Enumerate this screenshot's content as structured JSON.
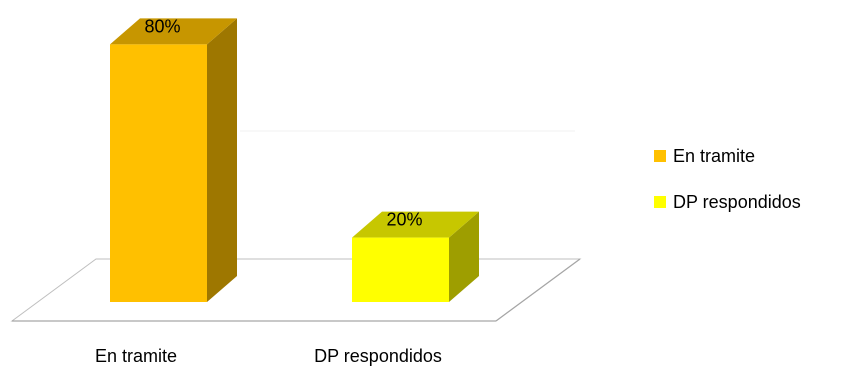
{
  "chart_data": {
    "type": "bar",
    "three_d": true,
    "categories": [
      "En tramite",
      "DP respondidos"
    ],
    "values": [
      80,
      20
    ],
    "data_labels": [
      "80%",
      "20%"
    ],
    "value_unit": "%",
    "ylim": [
      0,
      100
    ],
    "grid": true,
    "legend_position": "right",
    "series_colors": [
      "#FFC000",
      "#FFFF00"
    ],
    "legend": [
      {
        "label": "En tramite",
        "color": "#FFC000"
      },
      {
        "label": "DP respondidos",
        "color": "#FFFF00"
      }
    ]
  }
}
